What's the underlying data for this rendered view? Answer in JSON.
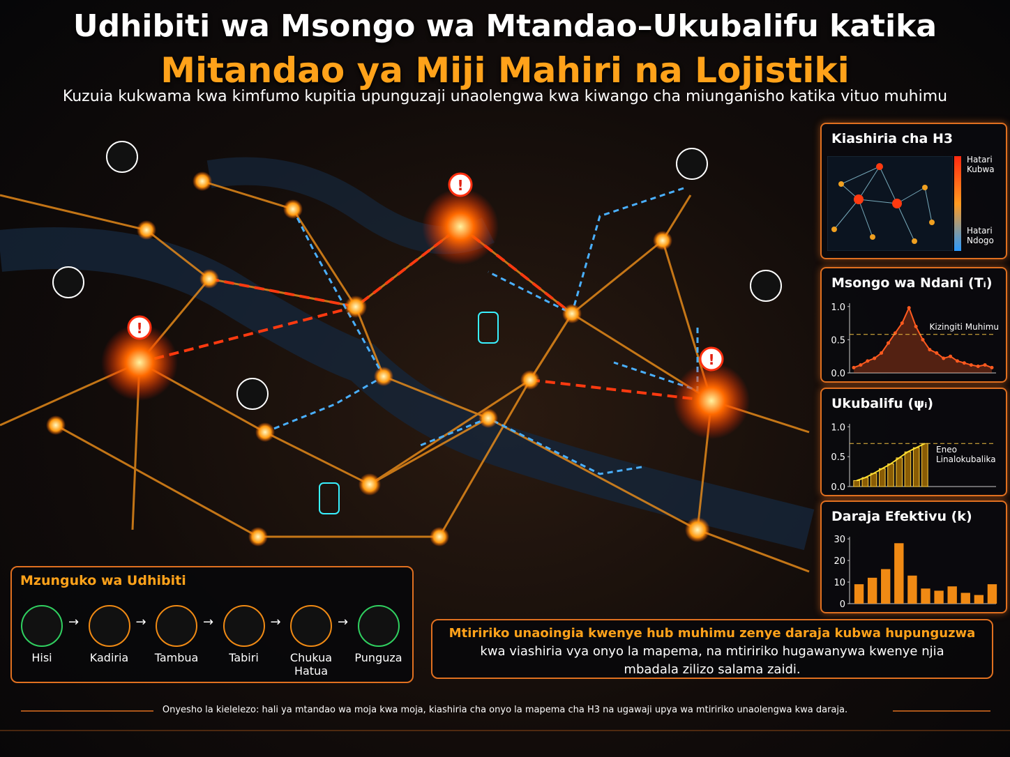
{
  "header": {
    "title_line1": "Udhibiti wa Msongo wa Mtandao–Ukubalifu katika",
    "title_line2": "Mitandao ya Miji Mahiri na Lojistiki",
    "subtitle": "Kuzuia kukwama kwa kimfumo kupitia upunguzaji unaolengwa kwa kiwango cha miunganisho katika vituo muhimu"
  },
  "h3_panel": {
    "title": "Kiashiria cha H3",
    "high_label": "Hatari Kubwa",
    "low_label": "Hatari Ndogo"
  },
  "panels": [
    {
      "type": "line",
      "title": "Msongo wa Ndani (Tᵢ)",
      "color": "#ff5a1f",
      "ylim": [
        0,
        1.05
      ],
      "yticks": [
        {
          "value": 0,
          "label": "0.0"
        },
        {
          "value": 0.5,
          "label": "0.5"
        },
        {
          "value": 1,
          "label": "1.0"
        }
      ],
      "values": [
        0.08,
        0.12,
        0.18,
        0.22,
        0.3,
        0.45,
        0.6,
        0.75,
        0.98,
        0.7,
        0.5,
        0.35,
        0.3,
        0.22,
        0.25,
        0.18,
        0.15,
        0.12,
        0.1,
        0.12,
        0.08
      ],
      "threshold": {
        "value": 0.58,
        "label": "Kizingiti Muhimu"
      }
    },
    {
      "type": "bar",
      "title": "Ukubalifu (ψᵢ)",
      "color": "#f2a100",
      "ylim": [
        0,
        1.05
      ],
      "yticks": [
        {
          "value": 0,
          "label": "0.0"
        },
        {
          "value": 0.5,
          "label": "0.5"
        },
        {
          "value": 1,
          "label": "1.0"
        }
      ],
      "values": [
        0.1,
        0.15,
        0.22,
        0.3,
        0.38,
        0.48,
        0.58,
        0.65,
        0.72
      ],
      "threshold": {
        "value": 0.72,
        "label": "Eneo Linalokubalika"
      }
    },
    {
      "type": "bar",
      "title": "Daraja Efektivu (k)",
      "color": "#f08a14",
      "ylim": [
        0,
        31
      ],
      "yticks": [
        0,
        10,
        20,
        30
      ],
      "values": [
        9,
        12,
        16,
        28,
        13,
        7,
        6,
        8,
        5,
        4,
        9
      ]
    }
  ],
  "control_loop": {
    "title": "Mzunguko wa Udhibiti",
    "steps": [
      "Hisi",
      "Kadiria",
      "Tambua",
      "Tabiri",
      "Chukua Hatua",
      "Punguza"
    ]
  },
  "callout": {
    "highlight": "Mtiririko unaoingia kwenye hub muhimu zenye daraja kubwa hupunguzwa",
    "text": "kwa viashiria vya onyo la mapema, na mtiririko hugawanywa kwenye njia mbadala zilizo salama zaidi."
  },
  "footer": "Onyesho la kielelezo: hali ya mtandao wa moja kwa moja, kiashiria cha onyo la mapema cha H3 na ugawaji upya wa mtiririko unaolengwa kwa daraja."
}
